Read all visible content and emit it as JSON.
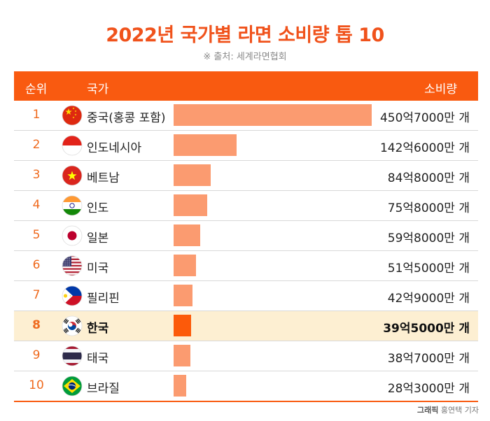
{
  "title": "2022년 국가별 라면 소비량 톱 10",
  "source": "※ 출처: 세계라면협회",
  "header": {
    "rank": "순위",
    "country": "국가",
    "consumption": "소비량"
  },
  "credit": {
    "prefix": "그래픽",
    "name": "홍연택 기자"
  },
  "colors": {
    "accent": "#f95a10",
    "bar": "#fb9b70",
    "highlight_bar": "#fc5a0a",
    "highlight_row": "#fdefd2"
  },
  "chart_data": {
    "type": "bar",
    "title": "2022년 국가별 라면 소비량 톱 10",
    "unit": "개",
    "rows": [
      {
        "rank": "1",
        "country": "중국(홍콩 포함)",
        "value": 45070000000,
        "label": "450억7000만 개",
        "flag": "china-flag-icon"
      },
      {
        "rank": "2",
        "country": "인도네시아",
        "value": 14260000000,
        "label": "142억6000만 개",
        "flag": "indonesia-flag-icon"
      },
      {
        "rank": "3",
        "country": "베트남",
        "value": 8480000000,
        "label": "84억8000만 개",
        "flag": "vietnam-flag-icon"
      },
      {
        "rank": "4",
        "country": "인도",
        "value": 7580000000,
        "label": "75억8000만 개",
        "flag": "india-flag-icon"
      },
      {
        "rank": "5",
        "country": "일본",
        "value": 5980000000,
        "label": "59억8000만 개",
        "flag": "japan-flag-icon"
      },
      {
        "rank": "6",
        "country": "미국",
        "value": 5150000000,
        "label": "51억5000만 개",
        "flag": "usa-flag-icon"
      },
      {
        "rank": "7",
        "country": "필리핀",
        "value": 4290000000,
        "label": "42억9000만 개",
        "flag": "philippines-flag-icon"
      },
      {
        "rank": "8",
        "country": "한국",
        "value": 3950000000,
        "label": "39억5000만 개",
        "flag": "korea-flag-icon",
        "highlight": true
      },
      {
        "rank": "9",
        "country": "태국",
        "value": 3870000000,
        "label": "38억7000만 개",
        "flag": "thailand-flag-icon"
      },
      {
        "rank": "10",
        "country": "브라질",
        "value": 2830000000,
        "label": "28억3000만 개",
        "flag": "brazil-flag-icon"
      }
    ]
  }
}
